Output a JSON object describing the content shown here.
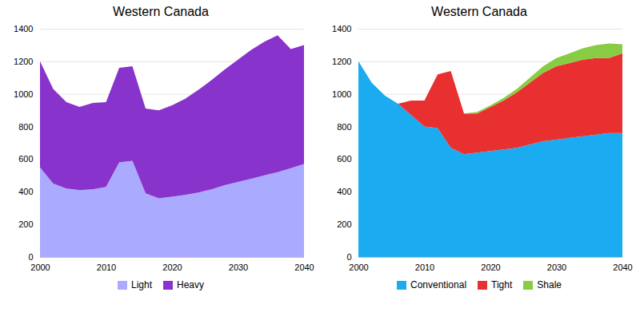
{
  "chart_data": [
    {
      "type": "area",
      "title": "Western Canada",
      "stacked": true,
      "grid": true,
      "legend": "bottom",
      "x": [
        2000,
        2002,
        2004,
        2006,
        2008,
        2010,
        2012,
        2014,
        2016,
        2018,
        2020,
        2022,
        2024,
        2026,
        2028,
        2030,
        2032,
        2034,
        2036,
        2038,
        2040
      ],
      "series": [
        {
          "name": "Light",
          "color": "#aaaaff",
          "values": [
            550,
            450,
            420,
            410,
            415,
            430,
            580,
            590,
            390,
            360,
            370,
            380,
            395,
            415,
            440,
            460,
            480,
            500,
            520,
            545,
            570
          ]
        },
        {
          "name": "Heavy",
          "color": "#8833cc",
          "values": [
            650,
            580,
            530,
            510,
            530,
            520,
            580,
            580,
            520,
            540,
            560,
            590,
            630,
            670,
            710,
            750,
            790,
            820,
            840,
            730,
            730
          ]
        }
      ],
      "xlim": [
        2000,
        2040
      ],
      "xticks": [
        2000,
        2010,
        2020,
        2030,
        2040
      ],
      "ylim": [
        0,
        1400
      ],
      "yticks": [
        0,
        200,
        400,
        600,
        800,
        1000,
        1200,
        1400
      ]
    },
    {
      "type": "area",
      "title": "Western Canada",
      "stacked": true,
      "grid": true,
      "legend": "bottom",
      "x": [
        2000,
        2002,
        2004,
        2006,
        2008,
        2010,
        2012,
        2014,
        2016,
        2018,
        2020,
        2022,
        2024,
        2026,
        2028,
        2030,
        2032,
        2034,
        2036,
        2038,
        2040
      ],
      "series": [
        {
          "name": "Conventional",
          "color": "#1aabf0",
          "values": [
            1200,
            1070,
            990,
            940,
            870,
            800,
            790,
            670,
            630,
            640,
            650,
            660,
            670,
            690,
            710,
            720,
            730,
            740,
            750,
            760,
            760
          ]
        },
        {
          "name": "Tight",
          "color": "#e83030",
          "values": [
            0,
            0,
            0,
            0,
            90,
            160,
            330,
            470,
            250,
            240,
            270,
            300,
            340,
            380,
            420,
            450,
            460,
            470,
            470,
            460,
            490
          ]
        },
        {
          "name": "Shale",
          "color": "#88cc44",
          "values": [
            0,
            0,
            0,
            0,
            0,
            0,
            0,
            0,
            0,
            10,
            10,
            15,
            20,
            30,
            40,
            50,
            60,
            70,
            80,
            90,
            55
          ]
        }
      ],
      "xlim": [
        2000,
        2040
      ],
      "xticks": [
        2000,
        2010,
        2020,
        2030,
        2040
      ],
      "ylim": [
        0,
        1400
      ],
      "yticks": [
        0,
        200,
        400,
        600,
        800,
        1000,
        1200,
        1400
      ]
    }
  ]
}
